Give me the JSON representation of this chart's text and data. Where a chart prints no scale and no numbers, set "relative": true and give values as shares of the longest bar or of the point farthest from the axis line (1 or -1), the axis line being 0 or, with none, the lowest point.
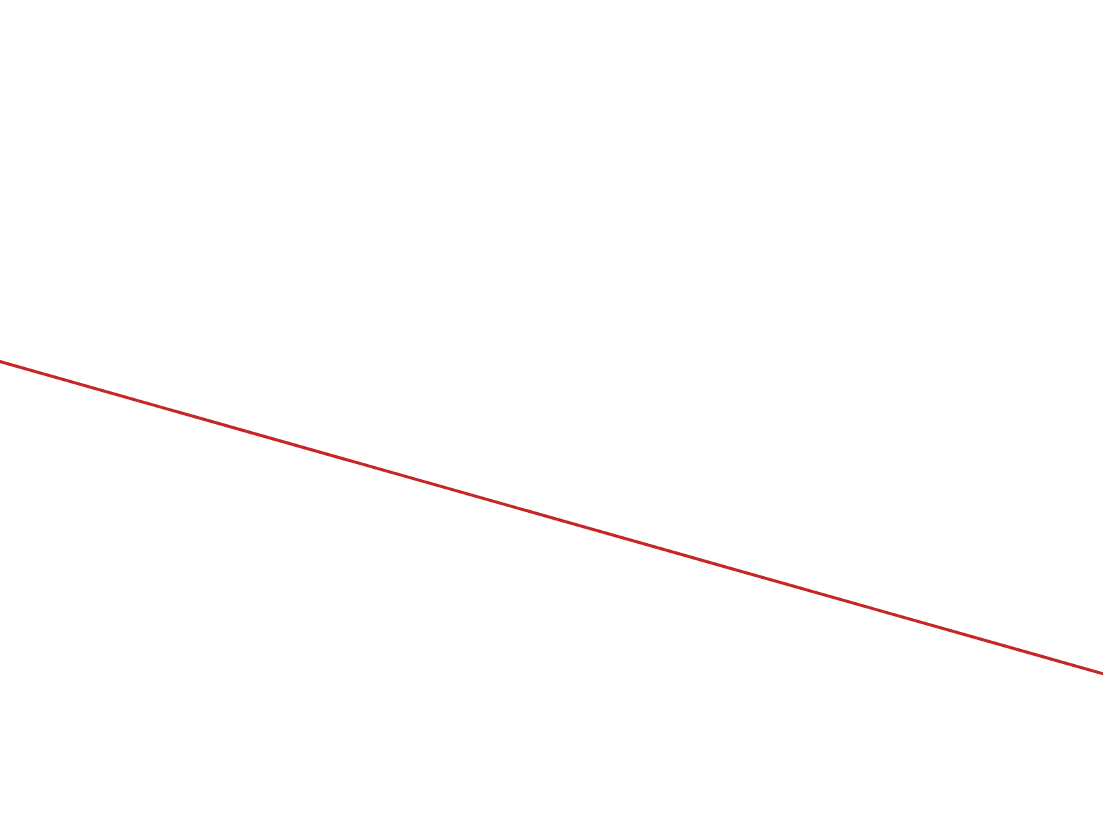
{
  "chart_data": {
    "type": "line",
    "relative": true,
    "categories": [
      null,
      null
    ],
    "series": [
      {
        "color": "#c62828",
        "values": [
          1,
          0
        ]
      }
    ],
    "legend": false,
    "marker": "none",
    "line_style": "solid"
  }
}
